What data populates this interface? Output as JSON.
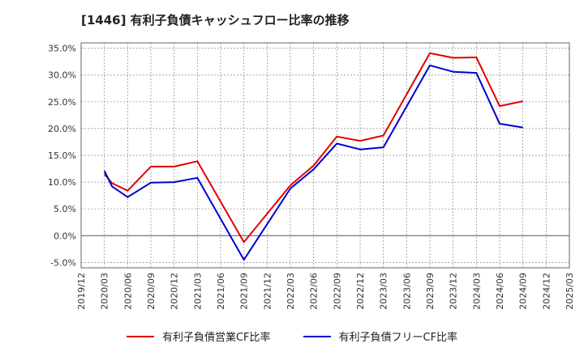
{
  "title": "[1446]  有利子負債キャッシュフロー比率の推移",
  "chart_data": {
    "type": "line",
    "x": [
      "2019/12",
      "2020/03",
      "2020/06",
      "2020/09",
      "2020/12",
      "2021/03",
      "2021/06",
      "2021/09",
      "2021/12",
      "2022/03",
      "2022/06",
      "2022/09",
      "2022/12",
      "2023/03",
      "2023/06",
      "2023/09",
      "2023/12",
      "2024/03",
      "2024/06",
      "2024/09",
      "2024/12",
      "2025/03"
    ],
    "y_ticks": [
      "-5.0%",
      "0.0%",
      "5.0%",
      "10.0%",
      "15.0%",
      "20.0%",
      "25.0%",
      "30.0%",
      "35.0%"
    ],
    "ylim": [
      -6,
      36
    ],
    "grid": true,
    "legend_position": "bottom",
    "series": [
      {
        "name": "有利子負債営業CF比率",
        "color": "#e00000",
        "points": [
          [
            "2020/03",
            11.5
          ],
          [
            "2020/04",
            9.8
          ],
          [
            "2020/06",
            8.4
          ],
          [
            "2020/09",
            12.9
          ],
          [
            "2020/12",
            12.9
          ],
          [
            "2021/03",
            13.9
          ],
          [
            "2021/09",
            -1.2
          ],
          [
            "2022/03",
            9.4
          ],
          [
            "2022/06",
            13.1
          ],
          [
            "2022/09",
            18.5
          ],
          [
            "2022/12",
            17.7
          ],
          [
            "2023/03",
            18.7
          ],
          [
            "2023/09",
            34.1
          ],
          [
            "2023/12",
            33.2
          ],
          [
            "2024/03",
            33.3
          ],
          [
            "2024/06",
            24.2
          ],
          [
            "2024/09",
            25.1
          ]
        ]
      },
      {
        "name": "有利子負債フリーCF比率",
        "color": "#0000cc",
        "points": [
          [
            "2020/03",
            12.1
          ],
          [
            "2020/04",
            9.2
          ],
          [
            "2020/06",
            7.2
          ],
          [
            "2020/09",
            9.9
          ],
          [
            "2020/12",
            10.0
          ],
          [
            "2021/03",
            10.8
          ],
          [
            "2021/09",
            -4.5
          ],
          [
            "2022/03",
            8.8
          ],
          [
            "2022/06",
            12.4
          ],
          [
            "2022/09",
            17.2
          ],
          [
            "2022/12",
            16.1
          ],
          [
            "2023/03",
            16.5
          ],
          [
            "2023/09",
            31.8
          ],
          [
            "2023/12",
            30.6
          ],
          [
            "2024/03",
            30.4
          ],
          [
            "2024/06",
            20.9
          ],
          [
            "2024/09",
            20.2
          ]
        ]
      }
    ]
  }
}
